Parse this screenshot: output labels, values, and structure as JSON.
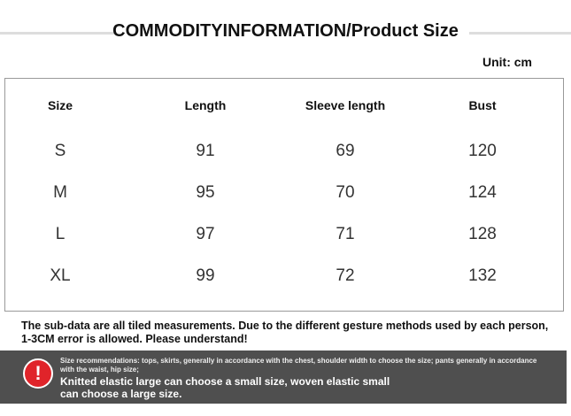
{
  "header": {
    "title": "COMMODITYINFORMATION/Product Size",
    "unit": "Unit: cm"
  },
  "table": {
    "columns": [
      "Size",
      "Length",
      "Sleeve length",
      "Bust"
    ],
    "rows": [
      [
        "S",
        91,
        69,
        120
      ],
      [
        "M",
        95,
        70,
        124
      ],
      [
        "L",
        97,
        71,
        128
      ],
      [
        "XL",
        99,
        72,
        132
      ]
    ]
  },
  "note": {
    "lines": [
      "The sub-data are all tiled measurements. Due to the different gesture methods used by each person,",
      "1-3CM error is allowed. Please understand!"
    ]
  },
  "banner": {
    "small": "Size recommendations: tops, skirts, generally in accordance with the chest, shoulder width to choose the size; pants generally in accordance with the waist, hip size;",
    "lines": [
      "Knitted elastic large can choose a small size, woven elastic small",
      "can choose a large size."
    ]
  }
}
